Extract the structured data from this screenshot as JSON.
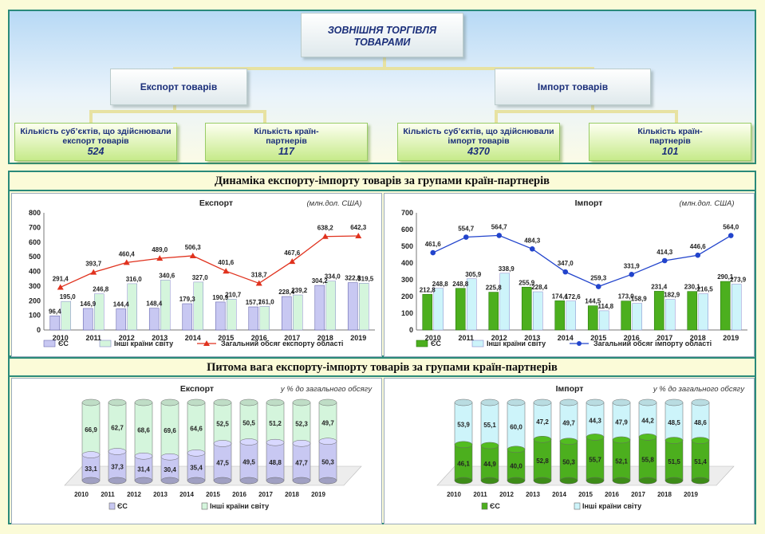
{
  "top": {
    "title": "ЗОВНІШНЯ ТОРГІВЛЯ ТОВАРАМИ",
    "export_label": "Експорт товарів",
    "import_label": "Імпорт товарів",
    "export_subjects_label": "Кількість суб’єктів, що здійснювали експорт товарів",
    "export_subjects_value": "524",
    "export_partners_label": "Кількість країн-партнерів",
    "export_partners_value": "117",
    "import_subjects_label": "Кількість суб’єктів, що здійснювали імпорт товарів",
    "import_subjects_value": "4370",
    "import_partners_label": "Кількість країн-партнерів",
    "import_partners_value": "101"
  },
  "sections": {
    "dynamics_title": "Динаміка експорту-імпорту товарів за групами країн-партнерів",
    "share_title": "Питома вага експорту-імпорту товарів за групами країн-партнерів"
  },
  "colors": {
    "eu_export": "#c8c8f2",
    "other_export": "#d4f5dc",
    "eu_import": "#4caf1e",
    "other_import": "#cdf4fa",
    "total_export_line": "#e0321e",
    "total_import_line": "#2244cc"
  },
  "chart_data": [
    {
      "id": "export-dynamics",
      "type": "bar",
      "title": "Експорт",
      "unit": "(млн.дол. США)",
      "categories": [
        "2010",
        "2011",
        "2012",
        "2013",
        "2014",
        "2015",
        "2016",
        "2017",
        "2018",
        "2019"
      ],
      "ylim": [
        0,
        800
      ],
      "yticks": [
        0,
        100,
        200,
        300,
        400,
        500,
        600,
        700,
        800
      ],
      "series": [
        {
          "name": "ЄС",
          "kind": "bar",
          "values": [
            96.4,
            146.9,
            144.4,
            148.4,
            179.3,
            190.9,
            157.7,
            228.4,
            304.2,
            322.8
          ]
        },
        {
          "name": "Інші країни світу",
          "kind": "bar",
          "values": [
            195.0,
            246.8,
            316.0,
            340.6,
            327.0,
            210.7,
            161.0,
            239.2,
            334.0,
            319.5
          ]
        },
        {
          "name": "Загальний обсяг експорту області",
          "kind": "line",
          "values": [
            291.4,
            393.7,
            460.4,
            489.0,
            506.3,
            401.6,
            318.7,
            467.6,
            638.2,
            642.3
          ]
        }
      ]
    },
    {
      "id": "import-dynamics",
      "type": "bar",
      "title": "Імпорт",
      "unit": "(млн.дол. США)",
      "categories": [
        "2010",
        "2011",
        "2012",
        "2013",
        "2014",
        "2015",
        "2016",
        "2017",
        "2018",
        "2019"
      ],
      "ylim": [
        0,
        700
      ],
      "yticks": [
        0,
        100,
        200,
        300,
        400,
        500,
        600,
        700
      ],
      "series": [
        {
          "name": "ЄС",
          "kind": "bar",
          "values": [
            212.8,
            248.8,
            225.8,
            255.9,
            174.4,
            144.5,
            173.0,
            231.4,
            230.1,
            290.1
          ]
        },
        {
          "name": "Інші країни світу",
          "kind": "bar",
          "values": [
            248.8,
            305.9,
            338.9,
            228.4,
            172.6,
            114.8,
            158.9,
            182.9,
            216.5,
            273.9
          ]
        },
        {
          "name": "Загальний обсяг імпорту області",
          "kind": "line",
          "values": [
            461.6,
            554.7,
            564.7,
            484.3,
            347.0,
            259.3,
            331.9,
            414.3,
            446.6,
            564.0
          ]
        }
      ]
    },
    {
      "id": "export-share",
      "type": "bar",
      "stacked": true,
      "title": "Експорт",
      "unit": "у % до загального обсягу",
      "categories": [
        "2010",
        "2011",
        "2012",
        "2013",
        "2014",
        "2015",
        "2016",
        "2017",
        "2018",
        "2019"
      ],
      "ylim": [
        0,
        100
      ],
      "series": [
        {
          "name": "ЄС",
          "values": [
            33.1,
            37.3,
            31.4,
            30.4,
            35.4,
            47.5,
            49.5,
            48.8,
            47.7,
            50.3
          ]
        },
        {
          "name": "Інші країни світу",
          "values": [
            66.9,
            62.7,
            68.6,
            69.6,
            64.6,
            52.5,
            50.5,
            51.2,
            52.3,
            49.7
          ]
        }
      ]
    },
    {
      "id": "import-share",
      "type": "bar",
      "stacked": true,
      "title": "Імпорт",
      "unit": "у % до загального обсягу",
      "categories": [
        "2010",
        "2011",
        "2012",
        "2013",
        "2014",
        "2015",
        "2016",
        "2017",
        "2018",
        "2019"
      ],
      "ylim": [
        0,
        100
      ],
      "series": [
        {
          "name": "ЄС",
          "values": [
            46.1,
            44.9,
            40.0,
            52.8,
            50.3,
            55.7,
            52.1,
            55.8,
            51.5,
            51.4
          ]
        },
        {
          "name": "Інші країни світу",
          "values": [
            53.9,
            55.1,
            60.0,
            47.2,
            49.7,
            44.3,
            47.9,
            44.2,
            48.5,
            48.6
          ]
        }
      ]
    }
  ]
}
